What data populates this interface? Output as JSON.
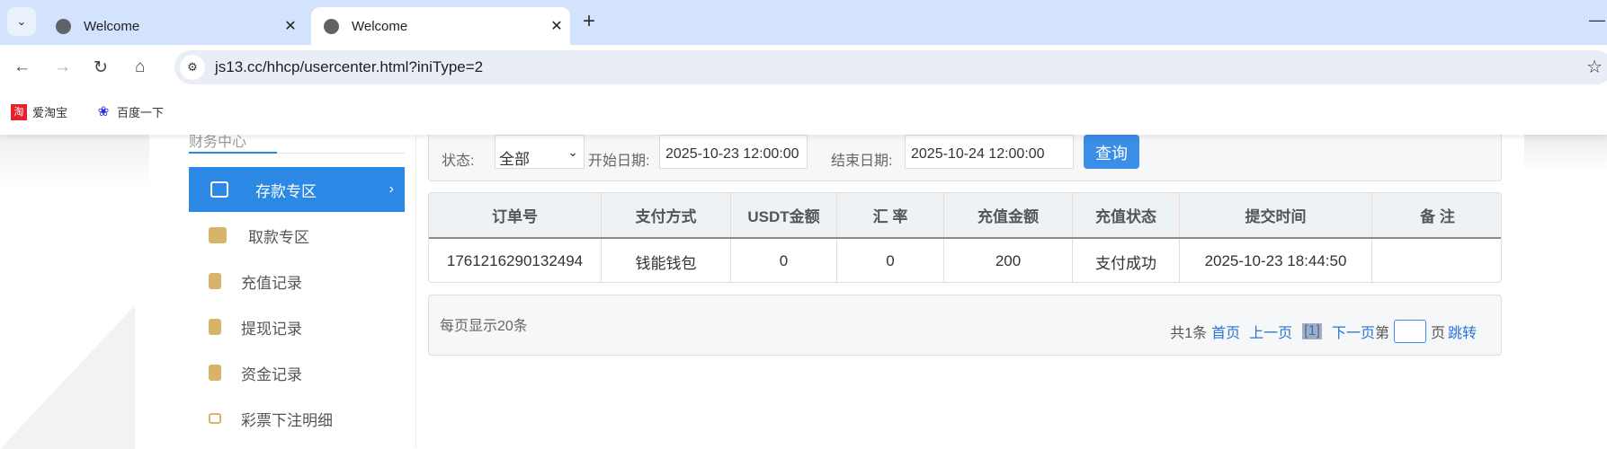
{
  "browser": {
    "tabs": [
      {
        "title": "Welcome",
        "active": false
      },
      {
        "title": "Welcome",
        "active": true
      }
    ],
    "url": "js13.cc/hhcp/usercenter.html?iniType=2",
    "bookmarks": [
      {
        "label": "爱淘宝",
        "icon": "taobao-icon"
      },
      {
        "label": "百度一下",
        "icon": "baidu-paw-icon"
      }
    ]
  },
  "sidebar": {
    "title": "财务中心",
    "items": [
      {
        "label": "存款专区",
        "icon": "card-icon",
        "active": true
      },
      {
        "label": "取款专区",
        "icon": "hand-money-icon"
      },
      {
        "label": "充值记录",
        "icon": "money-bag-icon"
      },
      {
        "label": "提现记录",
        "icon": "wallet-icon"
      },
      {
        "label": "资金记录",
        "icon": "fund-icon"
      },
      {
        "label": "彩票下注明细",
        "icon": "list-icon"
      }
    ]
  },
  "filter": {
    "status_label": "状态:",
    "status_value": "全部",
    "start_label": "开始日期:",
    "start_value": "2025-10-23 12:00:00",
    "end_label": "结束日期:",
    "end_value": "2025-10-24 12:00:00",
    "query_button": "查询"
  },
  "table": {
    "headers": [
      "订单号",
      "支付方式",
      "USDT金额",
      "汇 率",
      "充值金额",
      "充值状态",
      "提交时间",
      "备 注"
    ],
    "rows": [
      [
        "1761216290132494",
        "钱能钱包",
        "0",
        "0",
        "200",
        "支付成功",
        "2025-10-23 18:44:50",
        ""
      ]
    ]
  },
  "pagination": {
    "per_page": "每页显示20条",
    "total": "共1条",
    "first": "首页",
    "prev": "上一页",
    "current": "[1]",
    "next": "下一页",
    "page_prefix": "第",
    "page_suffix": "页",
    "jump": "跳转"
  },
  "colors": {
    "accent": "#2b88e5",
    "button": "#3a8ee6"
  }
}
